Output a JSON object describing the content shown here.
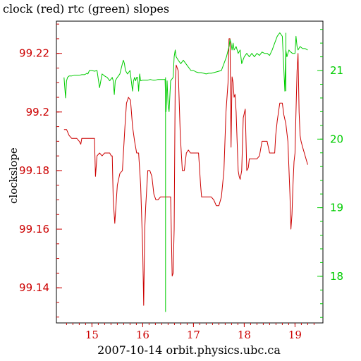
{
  "chart_data": {
    "type": "line",
    "title": "clock (red) rtc (green) slopes",
    "xlabel": "2007-10-14 orbit.physics.ubc.ca",
    "ylabel": "clockslope",
    "grid": false,
    "xlim": [
      14.3,
      19.55
    ],
    "x_ticks": [
      15,
      16,
      17,
      18,
      19
    ],
    "x_tick_labels": [
      "15",
      "16",
      "17",
      "18",
      "19"
    ],
    "y_left": {
      "lim": [
        99.128,
        99.231
      ],
      "ticks": [
        99.14,
        99.16,
        99.18,
        99.2,
        99.22
      ],
      "tick_labels": [
        "99.14",
        "99.16",
        "99.18",
        "99.2",
        "99.22"
      ],
      "color": "#cc0000"
    },
    "y_right": {
      "lim": [
        17.32,
        21.72
      ],
      "ticks": [
        18,
        19,
        20,
        21
      ],
      "tick_labels": [
        "18",
        "19",
        "20",
        "21"
      ],
      "color": "#00cc00"
    },
    "series": [
      {
        "name": "clock",
        "color": "#cc0000",
        "axis": "left",
        "x": [
          14.45,
          14.5,
          14.55,
          14.6,
          14.65,
          14.7,
          14.75,
          14.78,
          14.8,
          14.85,
          14.9,
          15.0,
          15.05,
          15.07,
          15.1,
          15.15,
          15.2,
          15.25,
          15.3,
          15.35,
          15.38,
          15.4,
          15.42,
          15.45,
          15.5,
          15.55,
          15.6,
          15.65,
          15.68,
          15.72,
          15.76,
          15.8,
          15.84,
          15.88,
          15.92,
          15.96,
          16.0,
          16.02,
          16.04,
          16.06,
          16.1,
          16.14,
          16.18,
          16.22,
          16.26,
          16.3,
          16.35,
          16.4,
          16.45,
          16.5,
          16.55,
          16.58,
          16.6,
          16.62,
          16.64,
          16.66,
          16.7,
          16.74,
          16.78,
          16.82,
          16.86,
          16.9,
          16.94,
          16.98,
          17.02,
          17.06,
          17.1,
          17.14,
          17.16,
          17.2,
          17.25,
          17.3,
          17.35,
          17.4,
          17.45,
          17.5,
          17.55,
          17.6,
          17.64,
          17.68,
          17.7,
          17.72,
          17.74,
          17.76,
          17.78,
          17.8,
          17.82,
          17.84,
          17.86,
          17.88,
          17.9,
          17.92,
          17.95,
          17.98,
          18.02,
          18.05,
          18.08,
          18.1,
          18.15,
          18.2,
          18.25,
          18.3,
          18.35,
          18.4,
          18.45,
          18.5,
          18.55,
          18.6,
          18.62,
          18.65,
          18.7,
          18.75,
          18.78,
          18.82,
          18.86,
          18.9,
          18.92,
          18.94,
          18.96,
          18.98,
          19.0,
          19.02,
          19.04,
          19.06,
          19.08,
          19.1,
          19.12,
          19.15,
          19.2,
          19.25
        ],
        "values": [
          99.194,
          99.194,
          99.192,
          99.191,
          99.191,
          99.191,
          99.19,
          99.189,
          99.191,
          99.191,
          99.191,
          99.191,
          99.191,
          99.178,
          99.185,
          99.186,
          99.185,
          99.186,
          99.186,
          99.186,
          99.185,
          99.185,
          99.17,
          99.162,
          99.175,
          99.179,
          99.18,
          99.195,
          99.203,
          99.205,
          99.204,
          99.195,
          99.19,
          99.186,
          99.186,
          99.175,
          99.153,
          99.134,
          99.16,
          99.168,
          99.18,
          99.18,
          99.178,
          99.172,
          99.17,
          99.17,
          99.171,
          99.171,
          99.171,
          99.171,
          99.171,
          99.144,
          99.145,
          99.16,
          99.21,
          99.216,
          99.214,
          99.192,
          99.18,
          99.18,
          99.186,
          99.187,
          99.186,
          99.186,
          99.186,
          99.186,
          99.186,
          99.175,
          99.171,
          99.171,
          99.171,
          99.171,
          99.171,
          99.17,
          99.168,
          99.168,
          99.171,
          99.18,
          99.2,
          99.21,
          99.225,
          99.225,
          99.188,
          99.212,
          99.21,
          99.205,
          99.206,
          99.2,
          99.19,
          99.18,
          99.178,
          99.177,
          99.18,
          99.198,
          99.201,
          99.18,
          99.181,
          99.184,
          99.184,
          99.184,
          99.184,
          99.185,
          99.19,
          99.19,
          99.19,
          99.186,
          99.186,
          99.186,
          99.192,
          99.197,
          99.203,
          99.203,
          99.199,
          99.196,
          99.19,
          99.172,
          99.16,
          99.165,
          99.175,
          99.183,
          99.186,
          99.2,
          99.214,
          99.22,
          99.2,
          99.192,
          99.19,
          99.188,
          99.185,
          99.182
        ],
        "values_note": ""
      },
      {
        "name": "rtc",
        "color": "#00cc00",
        "axis": "right",
        "x": [
          14.45,
          14.48,
          14.5,
          14.52,
          14.55,
          14.6,
          14.65,
          14.7,
          14.75,
          14.8,
          14.85,
          14.88,
          14.9,
          14.92,
          14.95,
          15.0,
          15.05,
          15.1,
          15.15,
          15.2,
          15.25,
          15.3,
          15.35,
          15.4,
          15.42,
          15.44,
          15.46,
          15.5,
          15.55,
          15.6,
          15.62,
          15.64,
          15.66,
          15.7,
          15.75,
          15.8,
          15.82,
          15.84,
          15.86,
          15.88,
          15.9,
          15.92,
          15.94,
          15.96,
          16.0,
          16.05,
          16.1,
          16.15,
          16.2,
          16.25,
          16.3,
          16.35,
          16.4,
          16.44,
          16.46,
          16.48,
          16.5,
          16.52,
          16.55,
          16.6,
          16.62,
          16.64,
          16.66,
          16.7,
          16.75,
          16.8,
          16.85,
          16.9,
          16.95,
          17.0,
          17.05,
          17.1,
          17.15,
          17.2,
          17.25,
          17.3,
          17.35,
          17.4,
          17.45,
          17.5,
          17.55,
          17.6,
          17.65,
          17.7,
          17.72,
          17.74,
          17.76,
          17.78,
          17.8,
          17.84,
          17.88,
          17.92,
          17.95,
          18.0,
          18.05,
          18.1,
          18.15,
          18.2,
          18.25,
          18.3,
          18.35,
          18.4,
          18.45,
          18.5,
          18.55,
          18.6,
          18.65,
          18.7,
          18.75,
          18.8,
          18.82,
          18.84,
          18.86,
          18.88,
          18.9,
          18.95,
          19.0,
          19.02,
          19.04,
          19.06,
          19.1,
          19.15,
          19.2,
          19.25
        ],
        "values": [
          20.9,
          20.6,
          20.85,
          20.9,
          20.92,
          20.92,
          20.93,
          20.93,
          20.93,
          20.94,
          20.94,
          20.95,
          20.96,
          20.95,
          21.0,
          21.0,
          20.99,
          21.0,
          20.75,
          20.95,
          20.92,
          20.9,
          20.85,
          20.9,
          20.85,
          20.65,
          20.85,
          20.9,
          20.95,
          21.1,
          21.15,
          21.1,
          21.0,
          20.95,
          21.0,
          20.7,
          20.85,
          20.9,
          20.85,
          20.9,
          20.9,
          20.7,
          20.95,
          20.85,
          20.86,
          20.86,
          20.86,
          20.87,
          20.86,
          20.86,
          20.87,
          20.87,
          20.87,
          20.87,
          20.4,
          20.85,
          20.5,
          20.4,
          20.85,
          20.9,
          21.2,
          21.3,
          21.2,
          21.15,
          21.1,
          21.15,
          21.1,
          21.05,
          21.0,
          21.0,
          20.98,
          20.97,
          20.97,
          20.96,
          20.95,
          20.96,
          20.96,
          20.97,
          20.98,
          20.99,
          21.0,
          21.1,
          21.2,
          21.35,
          21.45,
          21.4,
          21.3,
          21.4,
          21.3,
          21.35,
          21.25,
          21.3,
          21.1,
          21.2,
          21.25,
          21.2,
          21.25,
          21.2,
          21.25,
          21.22,
          21.27,
          21.25,
          21.25,
          21.22,
          21.3,
          21.4,
          21.5,
          21.55,
          21.5,
          20.7,
          21.3,
          21.2,
          21.25,
          21.3,
          21.28,
          21.25,
          21.25,
          21.5,
          21.35,
          21.3,
          21.35,
          21.32,
          21.32,
          21.3
        ],
        "spikes": [
          {
            "x": 16.45,
            "low": 17.48,
            "high": 20.9
          },
          {
            "x": 18.82,
            "low": 20.7,
            "high": 21.55
          }
        ]
      }
    ]
  }
}
